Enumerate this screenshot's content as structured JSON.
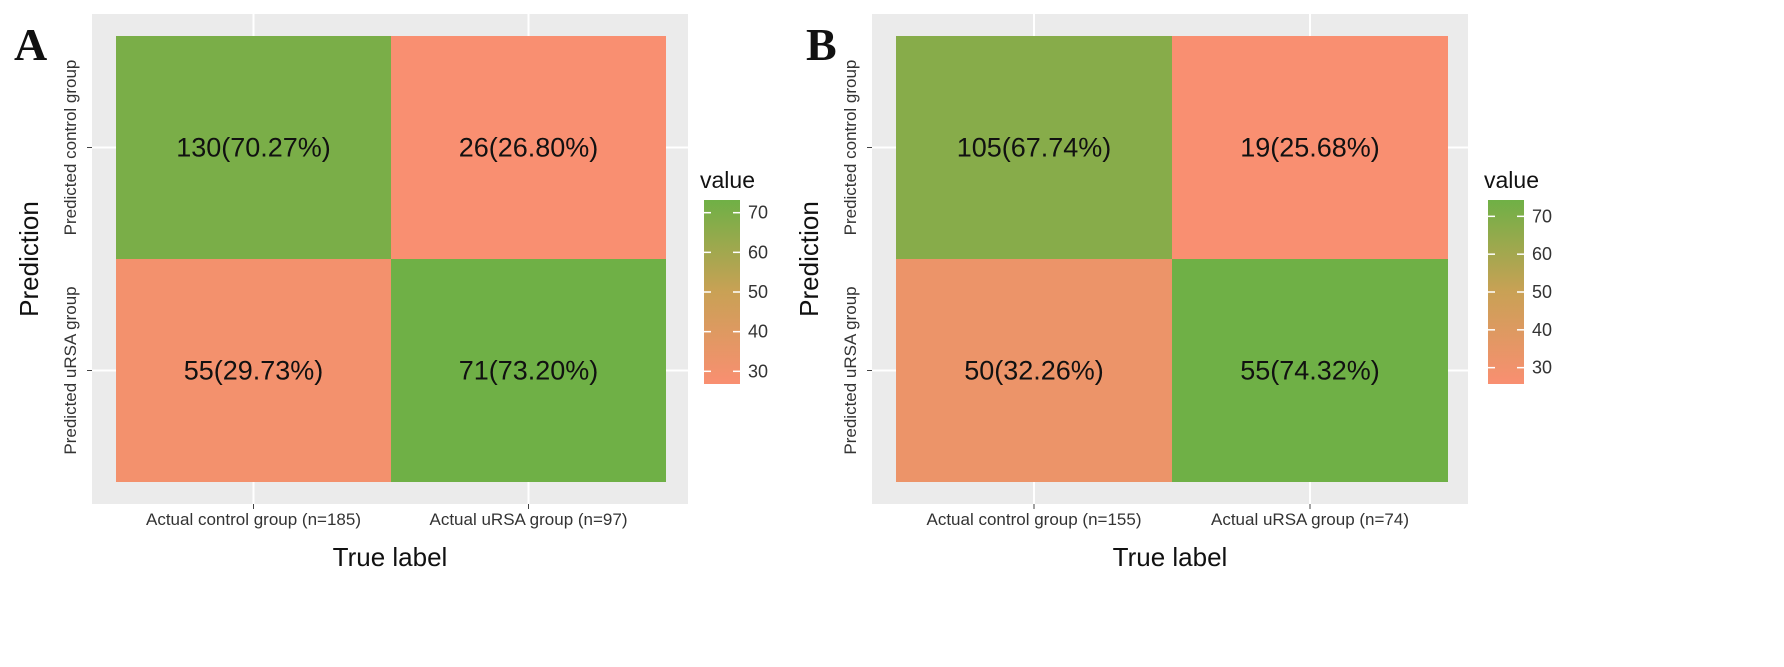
{
  "chart_data": [
    {
      "panel": "A",
      "type": "heatmap",
      "xlabel": "True label",
      "ylabel": "Prediction",
      "x_categories": [
        "Actual control group (n=185)",
        "Actual uRSA group (n=97)"
      ],
      "y_categories": [
        "Predicted control group",
        "Predicted uRSA group"
      ],
      "cells": [
        {
          "row": 0,
          "col": 0,
          "count": 130,
          "value": 70.27,
          "label": "130(70.27%)"
        },
        {
          "row": 0,
          "col": 1,
          "count": 26,
          "value": 26.8,
          "label": "26(26.80%)"
        },
        {
          "row": 1,
          "col": 0,
          "count": 55,
          "value": 29.73,
          "label": "55(29.73%)"
        },
        {
          "row": 1,
          "col": 1,
          "count": 71,
          "value": 73.2,
          "label": "71(73.20%)"
        }
      ],
      "legend": {
        "title": "value",
        "ticks": [
          "70",
          "60",
          "50",
          "40",
          "30"
        ],
        "range": [
          26.8,
          73.2
        ]
      }
    },
    {
      "panel": "B",
      "type": "heatmap",
      "xlabel": "True label",
      "ylabel": "Prediction",
      "x_categories": [
        "Actual control group (n=155)",
        "Actual uRSA group (n=74)"
      ],
      "y_categories": [
        "Predicted control group",
        "Predicted uRSA group"
      ],
      "cells": [
        {
          "row": 0,
          "col": 0,
          "count": 105,
          "value": 67.74,
          "label": "105(67.74%)"
        },
        {
          "row": 0,
          "col": 1,
          "count": 19,
          "value": 25.68,
          "label": "19(25.68%)"
        },
        {
          "row": 1,
          "col": 0,
          "count": 50,
          "value": 32.26,
          "label": "50(32.26%)"
        },
        {
          "row": 1,
          "col": 1,
          "count": 55,
          "value": 74.32,
          "label": "55(74.32%)"
        }
      ],
      "legend": {
        "title": "value",
        "ticks": [
          "70",
          "60",
          "50",
          "40",
          "30"
        ],
        "range": [
          25.68,
          74.32
        ]
      }
    }
  ],
  "colors": {
    "low": "#f98f71",
    "mid": "#c9a155",
    "high": "#6fb046",
    "panel_bg": "#ebebeb",
    "grid": "#ffffff"
  }
}
